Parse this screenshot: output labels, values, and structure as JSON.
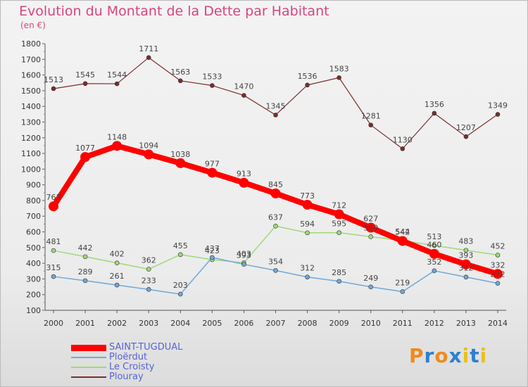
{
  "title": "Evolution du Montant de la Dette par Habitant",
  "subtitle": "(en €)",
  "logo": {
    "text": "Proxiti",
    "letter_colors": [
      "#f08a1c",
      "#2d7fd2",
      "#f08a1c",
      "#2d7fd2",
      "#e8c11e",
      "#2d7fd2",
      "#e8c11e"
    ]
  },
  "chart_data": {
    "type": "line",
    "title": "Evolution du Montant de la Dette par Habitant",
    "ylabel": "(en €)",
    "xlabel": "",
    "x": [
      "2000",
      "2001",
      "2002",
      "2003",
      "2004",
      "2005",
      "2006",
      "2007",
      "2008",
      "2009",
      "2010",
      "2011",
      "2012",
      "2013",
      "2014"
    ],
    "ylim": [
      100,
      1800
    ],
    "yticks": [
      100,
      200,
      300,
      400,
      500,
      600,
      700,
      800,
      900,
      1000,
      1100,
      1200,
      1300,
      1400,
      1500,
      1600,
      1700,
      1800
    ],
    "grid": false,
    "legend_position": "bottom-left",
    "series": [
      {
        "name": "SAINT-TUGDUAL",
        "color": "#ff0000",
        "values": [
          763,
          1077,
          1148,
          1094,
          1038,
          977,
          913,
          845,
          773,
          712,
          627,
          542,
          460,
          393,
          332
        ]
      },
      {
        "name": "Ploërdut",
        "color": "#6fa8d8",
        "values": [
          315,
          289,
          261,
          233,
          203,
          437,
          393,
          354,
          312,
          285,
          249,
          219,
          352,
          312,
          272
        ]
      },
      {
        "name": "Le Croisty",
        "color": "#9fd978",
        "values": [
          481,
          442,
          402,
          362,
          455,
          423,
          403,
          637,
          594,
          595,
          569,
          544,
          513,
          483,
          452
        ]
      },
      {
        "name": "Plouray",
        "color": "#7b2d2d",
        "values": [
          1513,
          1545,
          1544,
          1711,
          1563,
          1533,
          1470,
          1345,
          1536,
          1583,
          1281,
          1130,
          1356,
          1207,
          1349
        ]
      }
    ]
  }
}
